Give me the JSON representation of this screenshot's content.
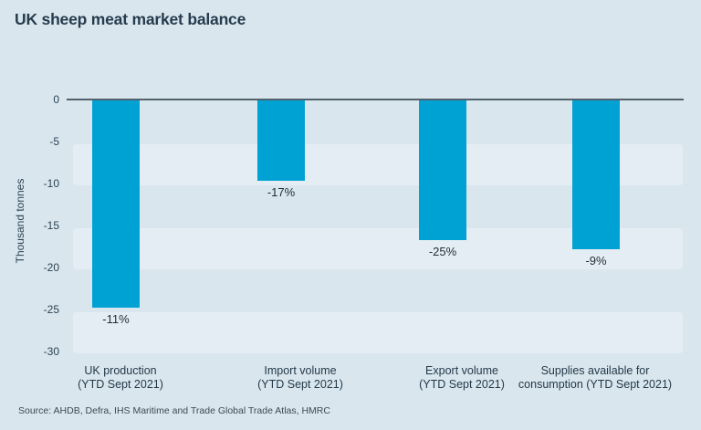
{
  "chart": {
    "title": "UK sheep meat market balance",
    "ylabel": "Thousand tonnes",
    "source": "Source: AHDB, Defra, IHS Maritime and Trade Global Trade Atlas, HMRC"
  },
  "chart_data": {
    "type": "bar",
    "title": "UK sheep meat market balance",
    "xlabel": "",
    "ylabel": "Thousand tonnes",
    "categories": [
      [
        "UK production",
        "(YTD Sept 2021)"
      ],
      [
        "Import volume",
        "(YTD Sept 2021)"
      ],
      [
        "Export volume",
        "(YTD Sept 2021)"
      ],
      [
        "Supplies available for",
        "consumption (YTD Sept 2021)"
      ]
    ],
    "values": [
      -24.8,
      -9.7,
      -16.7,
      -17.8
    ],
    "bar_labels": [
      "-11%",
      "-17%",
      "-25%",
      "-9%"
    ],
    "yticks": [
      0,
      -5,
      -10,
      -15,
      -20,
      -25,
      -30
    ],
    "ylim": [
      -30,
      0
    ],
    "grid": "alternating horizontal bands, zero axis line only",
    "legend": "none",
    "bar_color": "#00a2d4",
    "band_color": "#e4edf4",
    "background_color": "#dae6ed",
    "axis_line_color": "#51626d",
    "source": "Source: AHDB, Defra, IHS Maritime and Trade Global Trade Atlas, HMRC"
  }
}
